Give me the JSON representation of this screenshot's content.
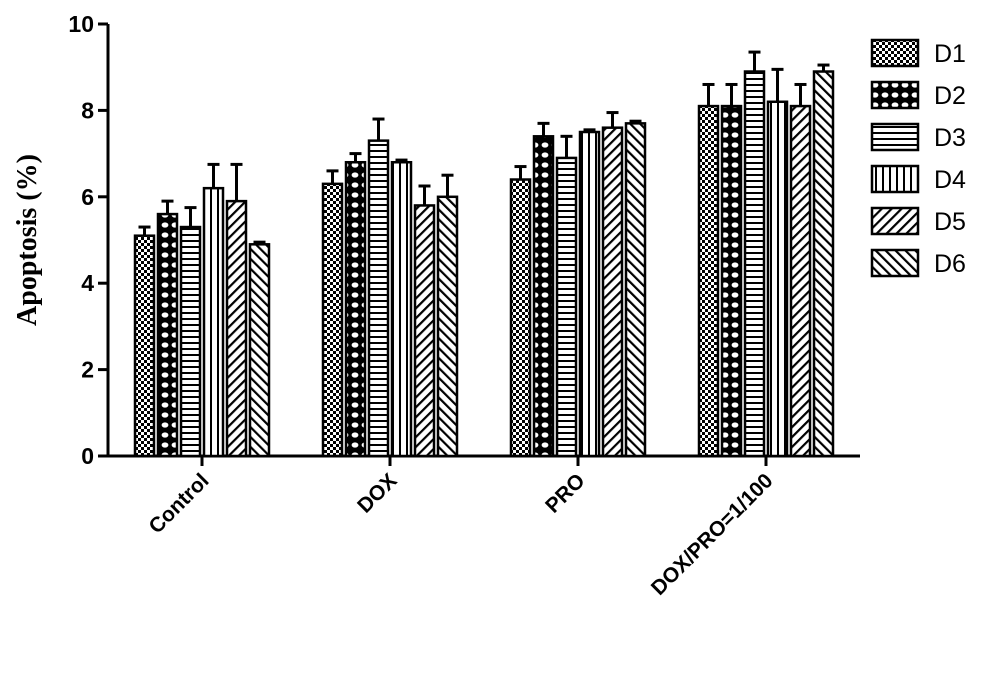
{
  "chart_data": {
    "type": "bar",
    "title": "",
    "xlabel": "",
    "ylabel": "Apoptosis (%)",
    "ylim": [
      0,
      10
    ],
    "yticks": [
      0,
      2,
      4,
      6,
      8,
      10
    ],
    "ytick_labels": [
      "0",
      "2",
      "4",
      "6",
      "8",
      "10"
    ],
    "categories": [
      "Control",
      "DOX",
      "PRO",
      "DOX/PRO=1/100"
    ],
    "legend_position": "right",
    "series": [
      {
        "name": "D1",
        "pattern": "checker",
        "values": [
          5.1,
          6.3,
          6.4,
          8.1
        ],
        "errors": [
          0.2,
          0.3,
          0.3,
          0.5
        ]
      },
      {
        "name": "D2",
        "pattern": "ovals",
        "values": [
          5.6,
          6.8,
          7.4,
          8.1
        ],
        "errors": [
          0.3,
          0.2,
          0.3,
          0.5
        ]
      },
      {
        "name": "D3",
        "pattern": "horizontal",
        "values": [
          5.3,
          7.3,
          6.9,
          8.9
        ],
        "errors": [
          0.45,
          0.5,
          0.5,
          0.45
        ]
      },
      {
        "name": "D4",
        "pattern": "vertical",
        "values": [
          6.2,
          6.8,
          7.5,
          8.2
        ],
        "errors": [
          0.55,
          0.05,
          0.05,
          0.75
        ]
      },
      {
        "name": "D5",
        "pattern": "diag-up",
        "values": [
          5.9,
          5.8,
          7.6,
          8.1
        ],
        "errors": [
          0.85,
          0.45,
          0.35,
          0.5
        ]
      },
      {
        "name": "D6",
        "pattern": "diag-down",
        "values": [
          4.9,
          6.0,
          7.7,
          8.9
        ],
        "errors": [
          0.05,
          0.5,
          0.05,
          0.15
        ]
      }
    ]
  }
}
